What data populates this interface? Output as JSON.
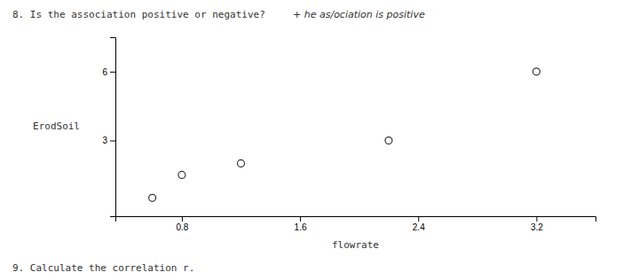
{
  "chart_data": {
    "type": "scatter",
    "annotations": [
      "8.  Is the association positive or negative?",
      "+ he  as/ociation  is  positive",
      "9.  Calculate the correlation r."
    ],
    "x_label": "flowrate",
    "y_label": "ErodSoil",
    "x": [
      0.6,
      0.8,
      1.2,
      2.2,
      3.2
    ],
    "values": [
      0.5,
      1.5,
      2.0,
      3.0,
      6.0
    ],
    "xlim": [
      0.35,
      3.6
    ],
    "ylim": [
      -0.3,
      7.5
    ],
    "xticks": [
      0.8,
      1.6,
      2.4,
      3.2
    ],
    "yticks": [
      3,
      6
    ],
    "color": "#333333",
    "marker": "open-circle",
    "grid": false
  }
}
